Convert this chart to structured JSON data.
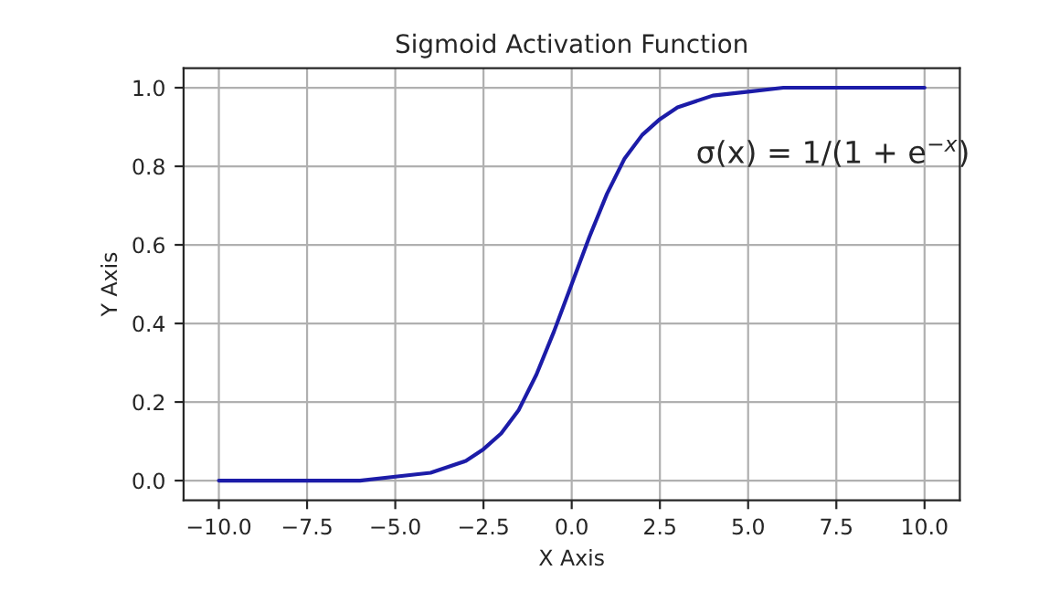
{
  "chart_data": {
    "type": "line",
    "title": "Sigmoid Activation Function",
    "xlabel": "X Axis",
    "ylabel": "Y Axis",
    "x": [
      -10,
      -8,
      -6,
      -5,
      -4,
      -3,
      -2.5,
      -2,
      -1.5,
      -1,
      -0.5,
      0,
      0.5,
      1,
      1.5,
      2,
      2.5,
      3,
      4,
      5,
      6,
      8,
      10
    ],
    "series": [
      {
        "color": "#1c1ca8",
        "values": [
          0.0,
          0.0,
          0.0,
          0.01,
          0.02,
          0.05,
          0.08,
          0.12,
          0.18,
          0.27,
          0.38,
          0.5,
          0.62,
          0.73,
          0.82,
          0.88,
          0.92,
          0.95,
          0.98,
          0.99,
          1.0,
          1.0,
          1.0
        ]
      }
    ],
    "xlim": [
      -11,
      11
    ],
    "ylim": [
      -0.05,
      1.05
    ],
    "xticks": [
      {
        "value": -10,
        "label": "−10.0"
      },
      {
        "value": -7.5,
        "label": "−7.5"
      },
      {
        "value": -5,
        "label": "−5.0"
      },
      {
        "value": -2.5,
        "label": "−2.5"
      },
      {
        "value": 0,
        "label": "0.0"
      },
      {
        "value": 2.5,
        "label": "2.5"
      },
      {
        "value": 5,
        "label": "5.0"
      },
      {
        "value": 7.5,
        "label": "7.5"
      },
      {
        "value": 10,
        "label": "10.0"
      }
    ],
    "yticks": [
      {
        "value": 0,
        "label": "0.0"
      },
      {
        "value": 0.2,
        "label": "0.2"
      },
      {
        "value": 0.4,
        "label": "0.4"
      },
      {
        "value": 0.6,
        "label": "0.6"
      },
      {
        "value": 0.8,
        "label": "0.8"
      },
      {
        "value": 1,
        "label": "1.0"
      }
    ],
    "grid": true,
    "annotations": [
      "σ(x) = 1/(1 + e$^{−x}$)"
    ]
  }
}
